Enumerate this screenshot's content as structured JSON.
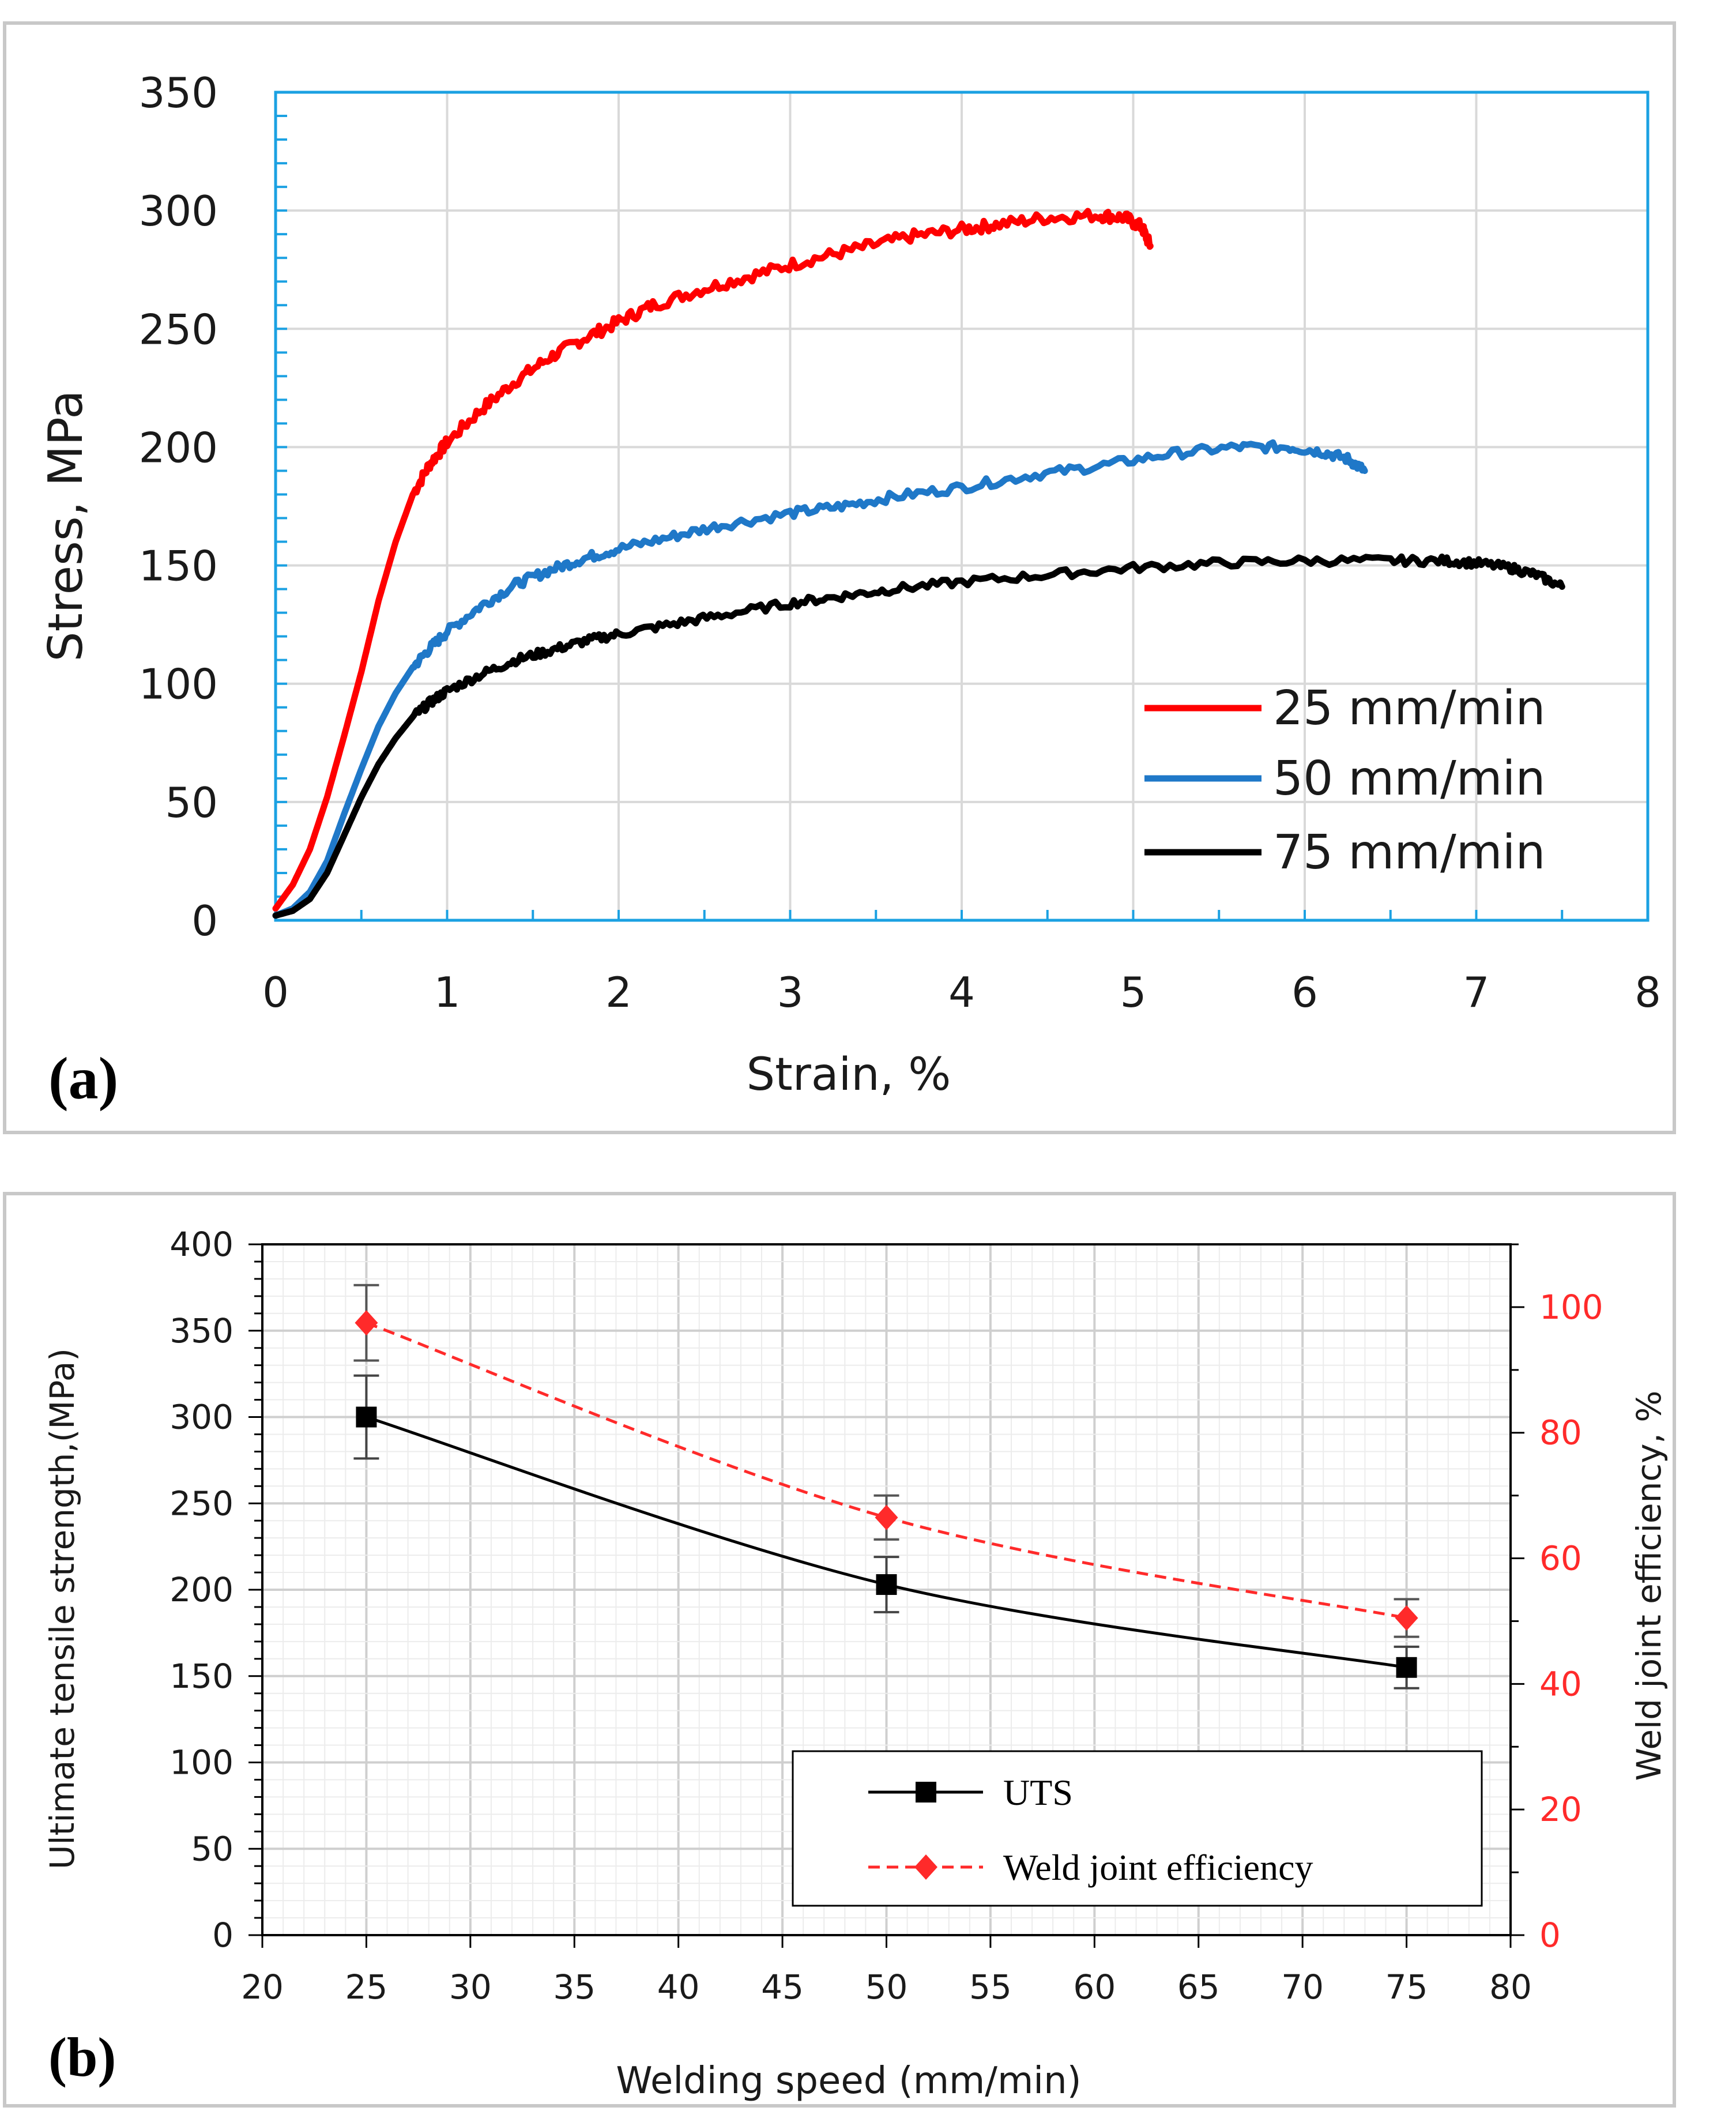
{
  "chart_data": [
    {
      "panel_label": "(a)",
      "type": "line",
      "title": "",
      "xlabel": "Strain, %",
      "ylabel": "Stress, MPa",
      "xlim": [
        0,
        8
      ],
      "ylim": [
        0,
        350
      ],
      "x_ticks": [
        "0",
        "1",
        "2",
        "3",
        "4",
        "5",
        "6",
        "7",
        "8"
      ],
      "y_ticks": [
        "0",
        "50",
        "100",
        "150",
        "200",
        "250",
        "300",
        "350"
      ],
      "grid": true,
      "legend_position": "bottom-right",
      "series": [
        {
          "name": "25 mm/min",
          "color": "#ff0000",
          "x": [
            0.0,
            0.1,
            0.2,
            0.3,
            0.4,
            0.5,
            0.6,
            0.7,
            0.8,
            0.9,
            1.0,
            1.2,
            1.4,
            1.6,
            1.8,
            2.0,
            2.2,
            2.5,
            2.8,
            3.1,
            3.4,
            3.7,
            4.0,
            4.2,
            4.5,
            4.8,
            4.95,
            5.05,
            5.1
          ],
          "y": [
            5,
            15,
            30,
            52,
            78,
            105,
            135,
            160,
            180,
            193,
            202,
            216,
            228,
            238,
            246,
            253,
            260,
            267,
            273,
            279,
            284,
            289,
            292,
            294,
            297,
            298,
            297,
            293,
            285
          ],
          "noise": 2.5
        },
        {
          "name": "50 mm/min",
          "color": "#1f78c8",
          "x": [
            0.0,
            0.1,
            0.2,
            0.3,
            0.4,
            0.5,
            0.6,
            0.7,
            0.8,
            0.9,
            1.0,
            1.2,
            1.4,
            1.6,
            1.8,
            2.0,
            2.3,
            2.6,
            3.0,
            3.3,
            3.6,
            4.0,
            4.4,
            4.8,
            5.2,
            5.6,
            5.9,
            6.1,
            6.25,
            6.35
          ],
          "y": [
            2,
            5,
            12,
            25,
            45,
            64,
            82,
            96,
            107,
            115,
            122,
            133,
            142,
            148,
            153,
            157,
            162,
            167,
            172,
            175,
            179,
            183,
            188,
            192,
            197,
            200,
            200,
            198,
            195,
            190
          ],
          "noise": 2.0
        },
        {
          "name": "75 mm/min",
          "color": "#000000",
          "x": [
            0.0,
            0.1,
            0.2,
            0.3,
            0.4,
            0.5,
            0.6,
            0.7,
            0.8,
            0.9,
            1.0,
            1.2,
            1.4,
            1.6,
            1.8,
            2.0,
            2.3,
            2.6,
            3.0,
            3.3,
            3.6,
            4.0,
            4.5,
            5.0,
            5.5,
            6.0,
            6.5,
            6.8,
            7.0,
            7.2,
            7.35,
            7.5
          ],
          "y": [
            2,
            4,
            9,
            20,
            36,
            52,
            66,
            77,
            86,
            92,
            97,
            104,
            110,
            114,
            118,
            121,
            125,
            129,
            134,
            137,
            140,
            143,
            146,
            149,
            151,
            152,
            152,
            152,
            151,
            149,
            146,
            141
          ],
          "noise": 1.8
        }
      ]
    },
    {
      "panel_label": "(b)",
      "type": "line",
      "title": "",
      "xlabel": "Welding speed (mm/min)",
      "ylabel": "Ultimate tensile strength,(MPa)",
      "y2label": "Weld joint efficiency, %",
      "xlim": [
        20,
        80
      ],
      "ylim": [
        0,
        400
      ],
      "y2lim": [
        0,
        110
      ],
      "x_ticks": [
        "20",
        "25",
        "30",
        "35",
        "40",
        "45",
        "50",
        "55",
        "60",
        "65",
        "70",
        "75",
        "80"
      ],
      "y_ticks": [
        "0",
        "50",
        "100",
        "150",
        "200",
        "250",
        "300",
        "350",
        "400"
      ],
      "y2_ticks": [
        "0",
        "20",
        "40",
        "60",
        "80",
        "100"
      ],
      "grid": true,
      "legend_position": "bottom-right",
      "series": [
        {
          "name": "UTS",
          "axis": "left",
          "color": "#000000",
          "marker": "square",
          "dash": "solid",
          "x": [
            25,
            50,
            75
          ],
          "values": [
            300,
            203,
            155
          ],
          "error": [
            24,
            16,
            12
          ]
        },
        {
          "name": "Weld joint efficiency",
          "axis": "right",
          "color": "#ff2a2a",
          "marker": "diamond",
          "dash": "dashed",
          "x": [
            25,
            50,
            75
          ],
          "values": [
            97.5,
            66.5,
            50.5
          ],
          "error": [
            6,
            3.5,
            3
          ]
        }
      ]
    }
  ]
}
